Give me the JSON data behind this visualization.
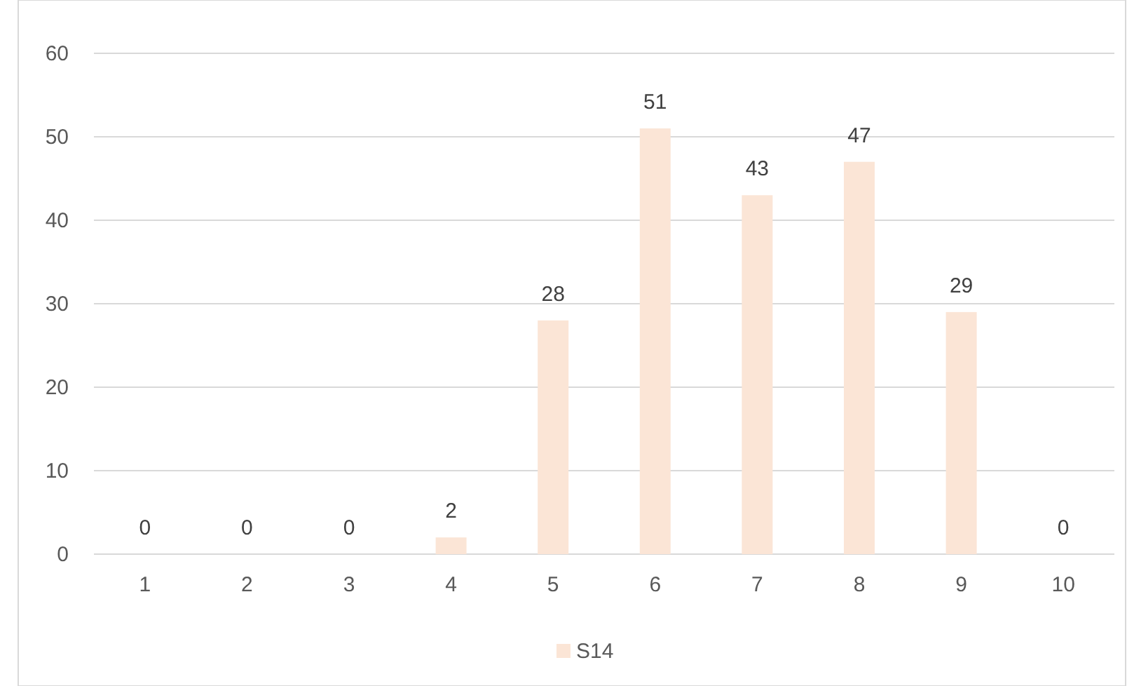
{
  "chart_data": {
    "type": "bar",
    "categories": [
      "1",
      "2",
      "3",
      "4",
      "5",
      "6",
      "7",
      "8",
      "9",
      "10"
    ],
    "series": [
      {
        "name": "S14",
        "color": "#fbe5d6",
        "values": [
          0,
          0,
          0,
          2,
          28,
          51,
          43,
          47,
          29,
          0
        ]
      }
    ],
    "ylim": [
      0,
      60
    ],
    "yticks": [
      0,
      10,
      20,
      30,
      40,
      50,
      60
    ],
    "grid": "y",
    "legend": "bottom",
    "data_labels": true
  }
}
